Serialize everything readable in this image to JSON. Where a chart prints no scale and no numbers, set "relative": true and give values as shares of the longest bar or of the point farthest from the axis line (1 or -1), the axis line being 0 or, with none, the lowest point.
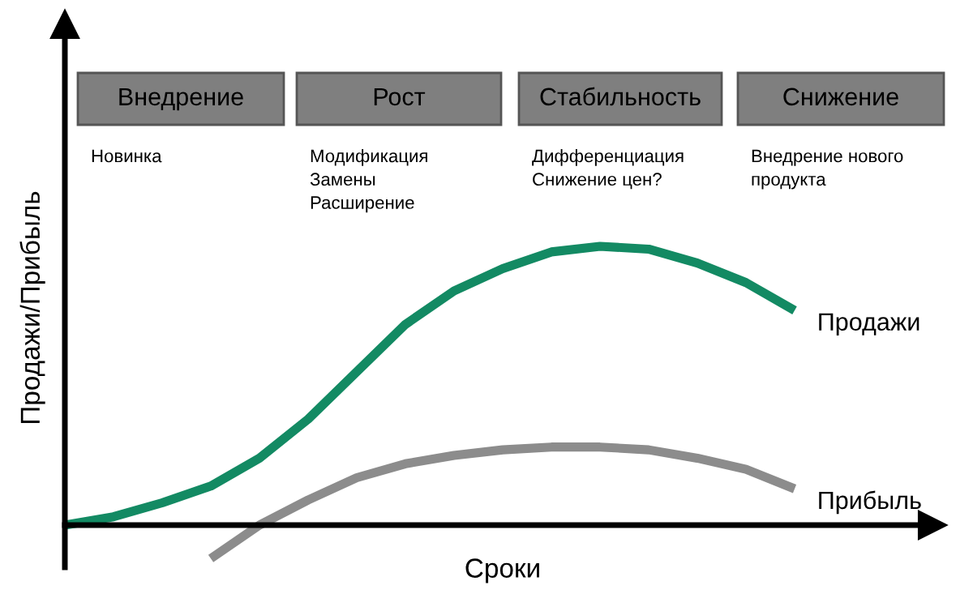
{
  "chart_data": {
    "type": "line",
    "relative": true,
    "xlabel": "Сроки",
    "ylabel": "Продажи/Прибыль",
    "categories": [
      null,
      null,
      null,
      null,
      null,
      null,
      null,
      null,
      null,
      null,
      null,
      null,
      null,
      null,
      null,
      null
    ],
    "series": [
      {
        "name": "Продажи",
        "color": "#138a63",
        "values": [
          0,
          0.03,
          0.08,
          0.14,
          0.24,
          0.38,
          0.55,
          0.72,
          0.84,
          0.92,
          0.98,
          1.0,
          0.99,
          0.94,
          0.87,
          0.77
        ]
      },
      {
        "name": "Прибыль",
        "color": "#8c8c8c",
        "values": [
          null,
          null,
          null,
          -0.12,
          0.0,
          0.09,
          0.17,
          0.22,
          0.25,
          0.27,
          0.28,
          0.28,
          0.27,
          0.24,
          0.2,
          0.13
        ]
      }
    ],
    "annotations": [
      "Внедрение",
      "Рост",
      "Стабильность",
      "Снижение",
      "Новинка",
      "Модификация\nЗамены\nРасширение",
      "Дифференциация\nСнижение цен?",
      "Внедрение нового\nпродукта"
    ],
    "legend": false,
    "marker": "none",
    "line_style": "solid"
  }
}
